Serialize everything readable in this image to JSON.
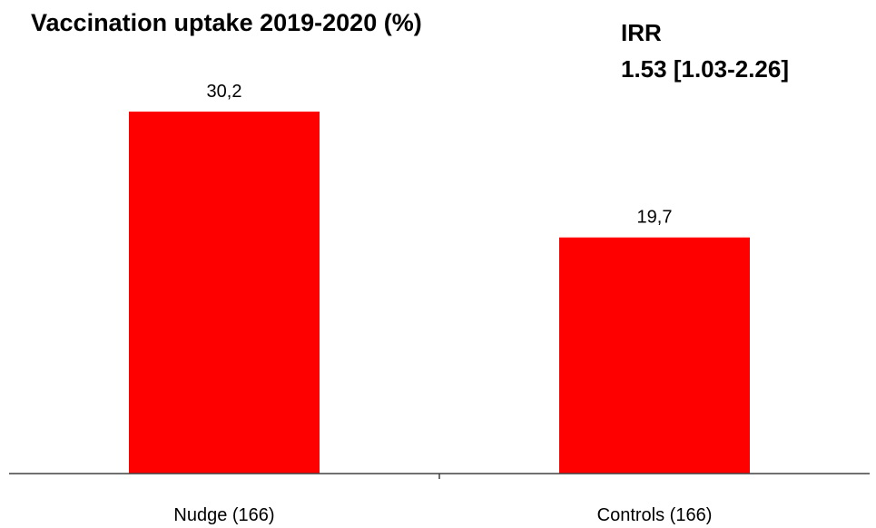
{
  "title": "Vaccination uptake 2019-2020 (%)",
  "irr": {
    "label": "IRR",
    "value": "1.53 [1.03-2.26]"
  },
  "chart_data": {
    "type": "bar",
    "categories": [
      "Nudge (166)",
      "Controls (166)"
    ],
    "values": [
      30.2,
      19.7
    ],
    "value_labels": [
      "30,2",
      "19,7"
    ],
    "title": "Vaccination uptake 2019-2020 (%)",
    "xlabel": "",
    "ylabel": "",
    "ylim": [
      0,
      30.2
    ],
    "grid": false,
    "legend": "none",
    "bar_color": "#ff0000",
    "axis_color": "#404040"
  }
}
